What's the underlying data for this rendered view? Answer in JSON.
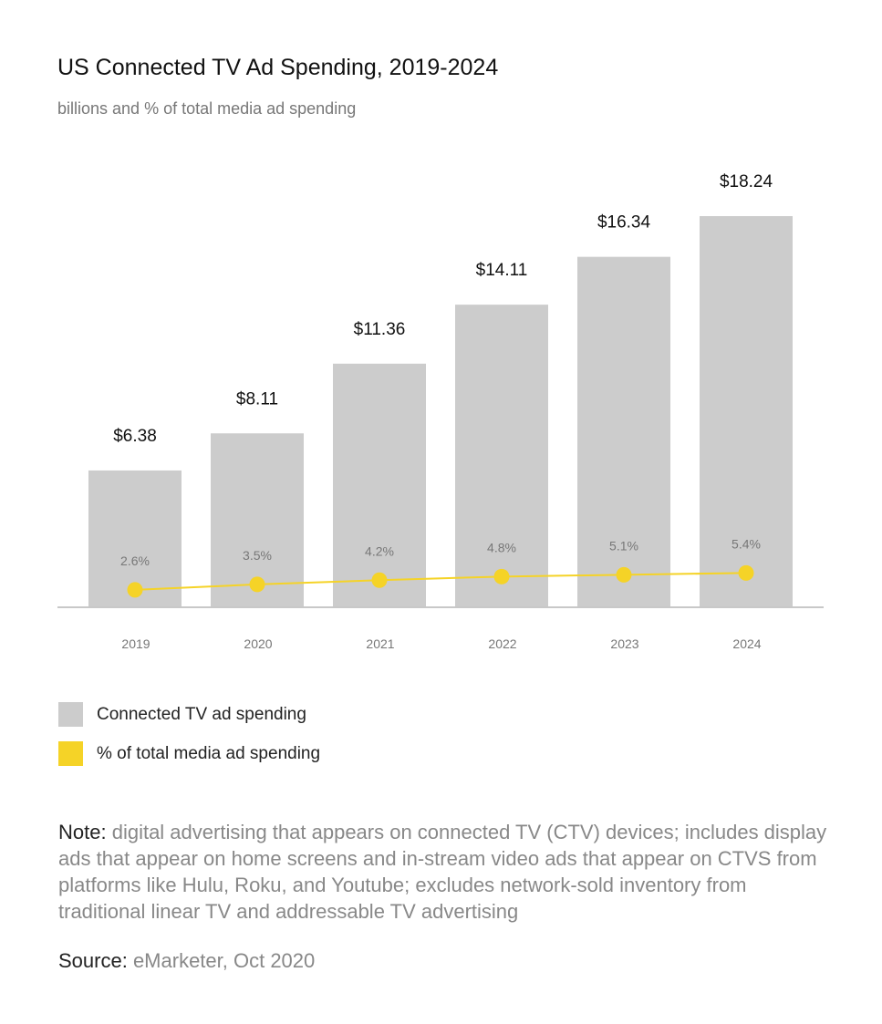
{
  "chart_data": {
    "type": "bar",
    "title": "US Connected TV Ad Spending, 2019-2024",
    "subtitle": "billions and % of total media ad spending",
    "categories": [
      "2019",
      "2020",
      "2021",
      "2022",
      "2023",
      "2024"
    ],
    "series": [
      {
        "name": "Connected TV ad spending",
        "type": "bar",
        "values": [
          6.38,
          8.11,
          11.36,
          14.11,
          16.34,
          18.24
        ],
        "labels": [
          "$6.38",
          "$8.11",
          "$11.36",
          "$14.11",
          "$16.34",
          "$18.24"
        ],
        "color": "#cccccc"
      },
      {
        "name": "% of total media ad spending",
        "type": "line",
        "values": [
          2.6,
          3.5,
          4.2,
          4.8,
          5.1,
          5.4
        ],
        "labels": [
          "2.6%",
          "3.5%",
          "4.2%",
          "4.8%",
          "5.1%",
          "5.4%"
        ],
        "color": "#f5d327"
      }
    ],
    "grid": false,
    "legend_position": "bottom-left"
  },
  "note": {
    "label": "Note:",
    "text": " digital advertising that appears on connected TV (CTV) devices; includes display ads that appear on home screens and in-stream video ads that appear on CTVS from platforms like Hulu, Roku, and Youtube; excludes network-sold inventory from traditional linear TV and addressable TV advertising"
  },
  "source": {
    "label": "Source:",
    "text": " eMarketer, Oct 2020"
  }
}
